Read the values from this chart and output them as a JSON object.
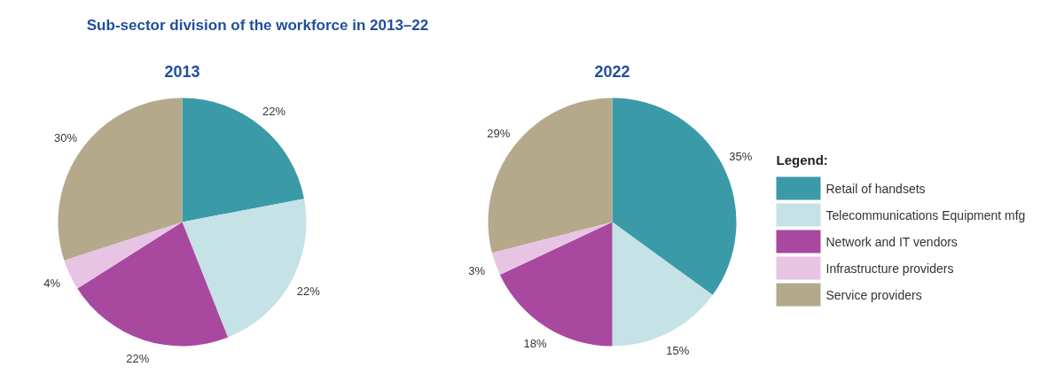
{
  "chart_data": [
    {
      "type": "pie",
      "title": "Sub-sector division of the workforce in 2013–22",
      "subtitle": "2013",
      "categories": [
        "Retail of handsets",
        "Telecommunications Equipment mfg",
        "Network and IT vendors",
        "Infrastructure providers",
        "Service providers"
      ],
      "values": [
        22,
        22,
        22,
        4,
        30
      ],
      "value_labels": [
        "22%",
        "22%",
        "22%",
        "4%",
        "30%"
      ],
      "colors": [
        "#3a9aa8",
        "#c5e2e6",
        "#a8489f",
        "#e8c4e4",
        "#b4a98b"
      ],
      "legend": "right",
      "legend_title": "Legend:"
    },
    {
      "type": "pie",
      "title": "2022",
      "categories": [
        null,
        null,
        null,
        null,
        null
      ],
      "values": [
        35,
        15,
        18,
        3,
        29
      ],
      "value_labels": [
        "35%",
        "15%",
        "18%",
        "3%",
        "29%"
      ],
      "colors": [
        "#3a9aa8",
        "#c5e2e6",
        "#a8489f",
        "#e8c4e4",
        "#b4a98b"
      ]
    }
  ]
}
